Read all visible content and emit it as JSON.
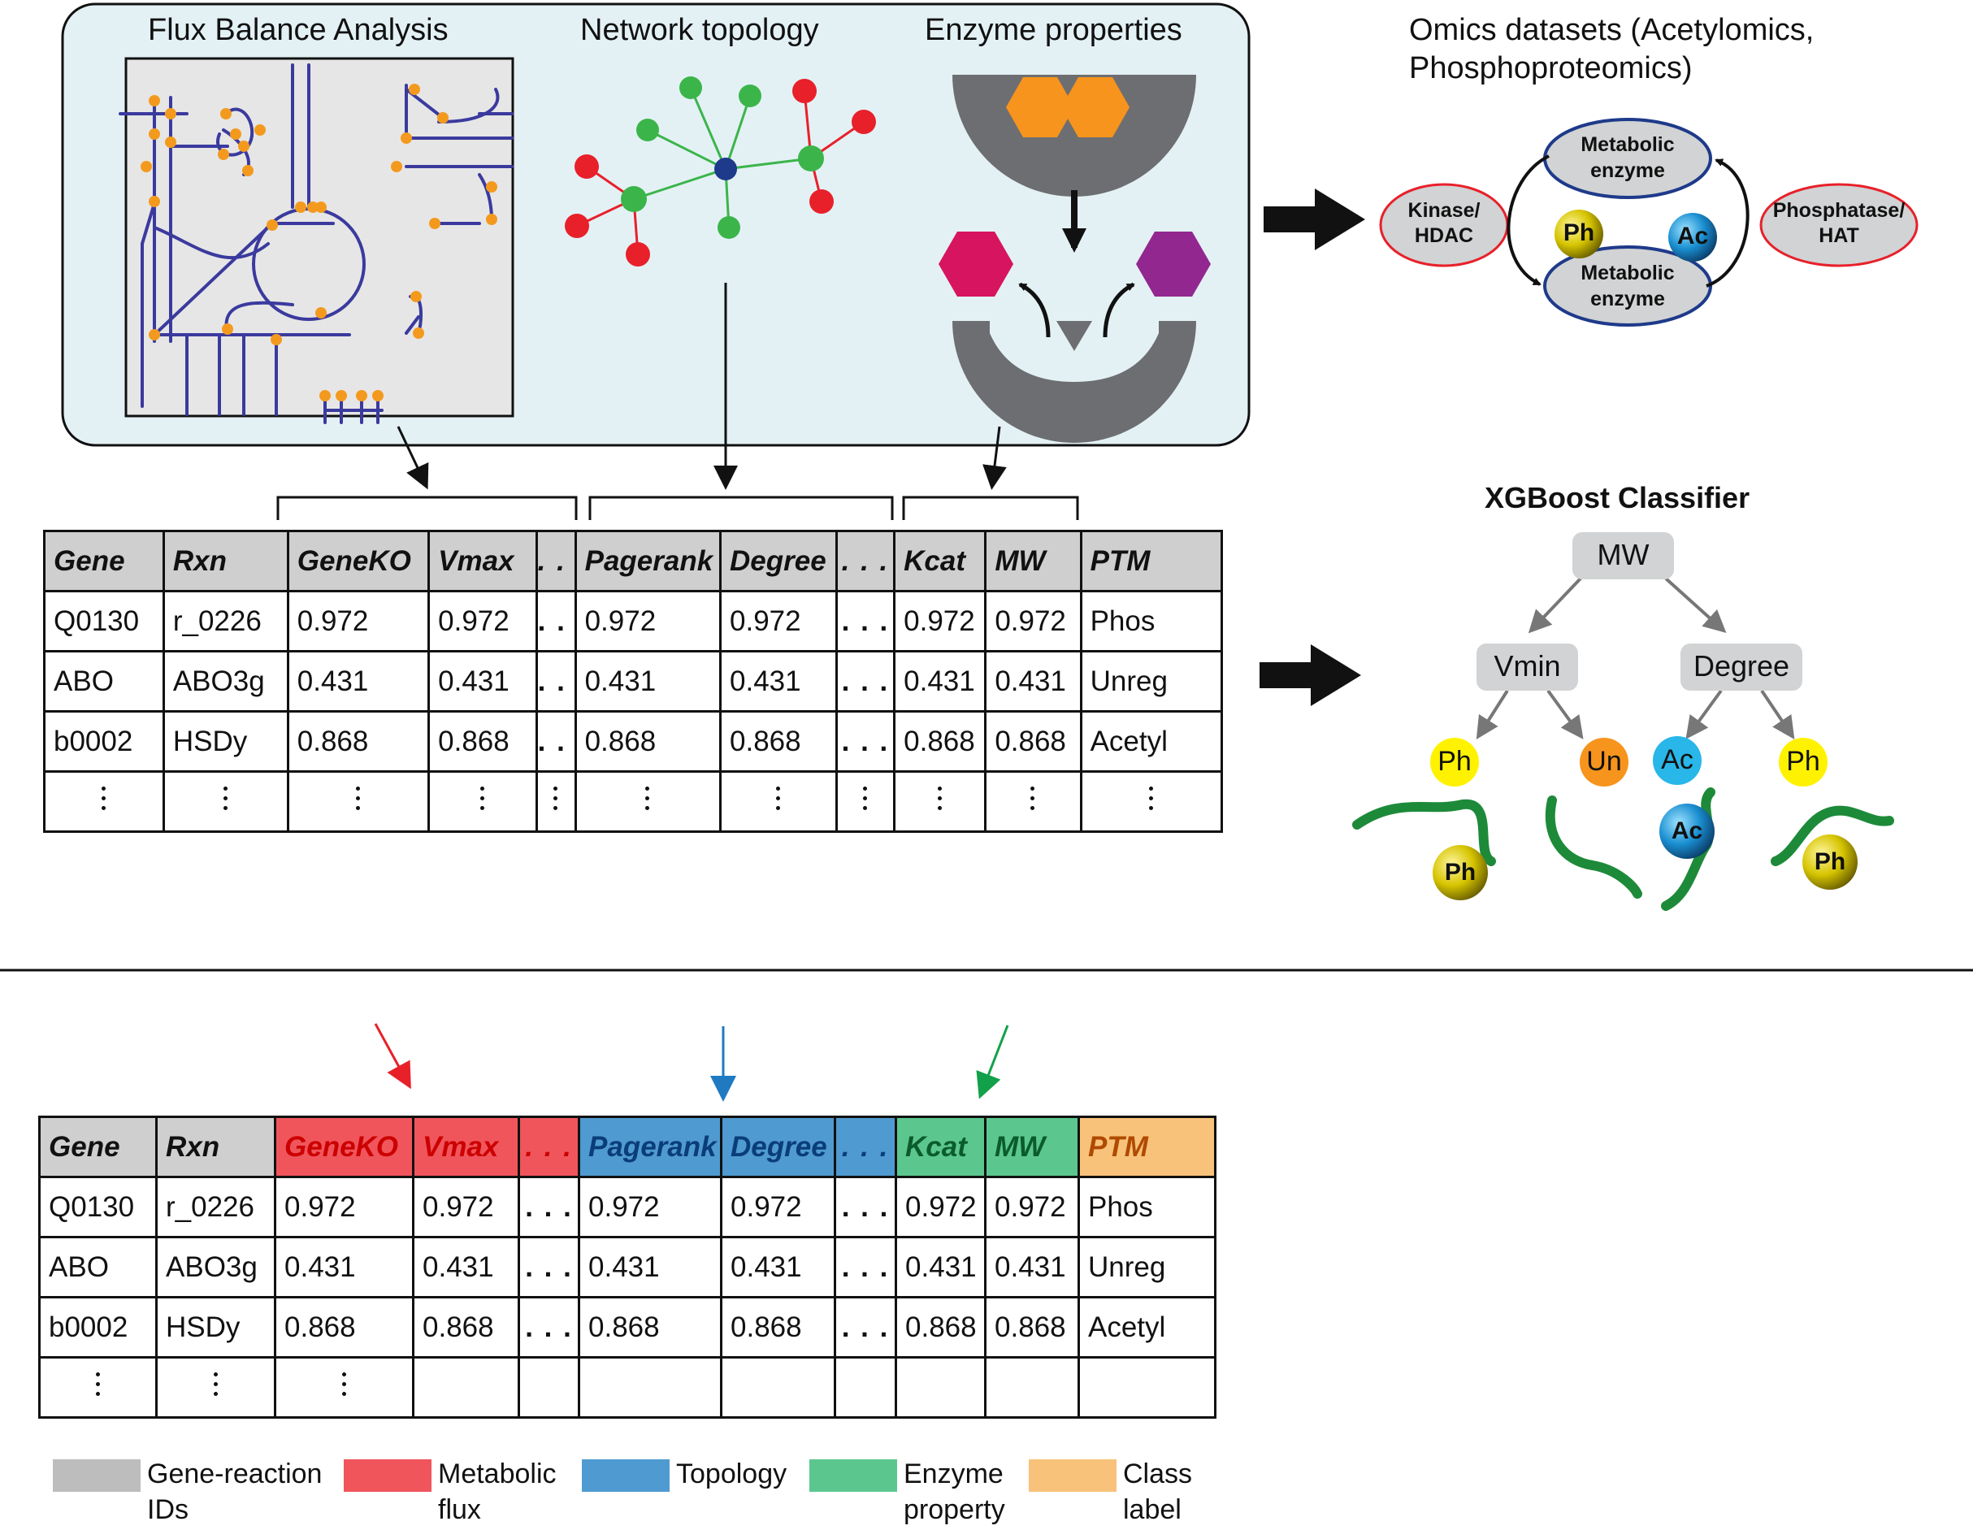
{
  "panel": {
    "fba_title": "Flux Balance Analysis",
    "network_title": "Network topology",
    "enzyme_title": "Enzyme properties"
  },
  "omics": {
    "title_line1": "Omics datasets (Acetylomics,",
    "title_line2": "Phosphoproteomics)",
    "kinase": [
      "Kinase/",
      "HDAC"
    ],
    "phosphatase": [
      "Phosphatase/",
      "HAT"
    ],
    "enzyme_top": [
      "Metabolic",
      "enzyme"
    ],
    "enzyme_bottom": [
      "Metabolic",
      "enzyme"
    ],
    "ph": "Ph",
    "ac": "Ac"
  },
  "xgboost": {
    "title": "XGBoost Classifier",
    "root": "MW",
    "left": "Vmin",
    "right": "Degree",
    "leaves": [
      "Ph",
      "Un",
      "Ac",
      "Ph"
    ],
    "protein_labels": [
      "Ph",
      "Ac",
      "Ph"
    ]
  },
  "table": {
    "headers": [
      "Gene",
      "Rxn",
      "GeneKO",
      "Vmax",
      ". . .",
      "Pagerank",
      "Degree",
      ". . .",
      "Kcat",
      "MW",
      "PTM"
    ],
    "rows": [
      [
        "Q0130",
        "r_0226",
        "0.972",
        "0.972",
        ". . .",
        "0.972",
        "0.972",
        ". . .",
        "0.972",
        "0.972",
        "Phos"
      ],
      [
        "ABO",
        "ABO3g",
        "0.431",
        "0.431",
        ". . .",
        "0.431",
        "0.431",
        ". . .",
        "0.431",
        "0.431",
        "Unreg"
      ],
      [
        "b0002",
        "HSDy",
        "0.868",
        "0.868",
        ". . .",
        "0.868",
        "0.868",
        ". . .",
        "0.868",
        "0.868",
        "Acetyl"
      ]
    ]
  },
  "legend": [
    {
      "label_1": "Gene-reaction",
      "label_2": "IDs",
      "color": "#bdbdbd"
    },
    {
      "label_1": "Metabolic",
      "label_2": "flux",
      "color": "#f0555c"
    },
    {
      "label_1": "Topology",
      "label_2": "",
      "color": "#4f9ad1"
    },
    {
      "label_1": "Enzyme",
      "label_2": "property",
      "color": "#5bc78f"
    },
    {
      "label_1": "Class",
      "label_2": "label",
      "color": "#f8c27a"
    }
  ],
  "colors": {
    "panel_bg": "#e3f1f5",
    "network_edge": "#3a3a9e",
    "node_orange": "#f39a1e",
    "node_green": "#3bb54a",
    "node_red": "#e8202a",
    "node_blue": "#1e3a8a",
    "substrate": "#f7941d",
    "product_red": "#d6145f",
    "product_purple": "#92278f",
    "enzyme_grey": "#6d6e71"
  }
}
